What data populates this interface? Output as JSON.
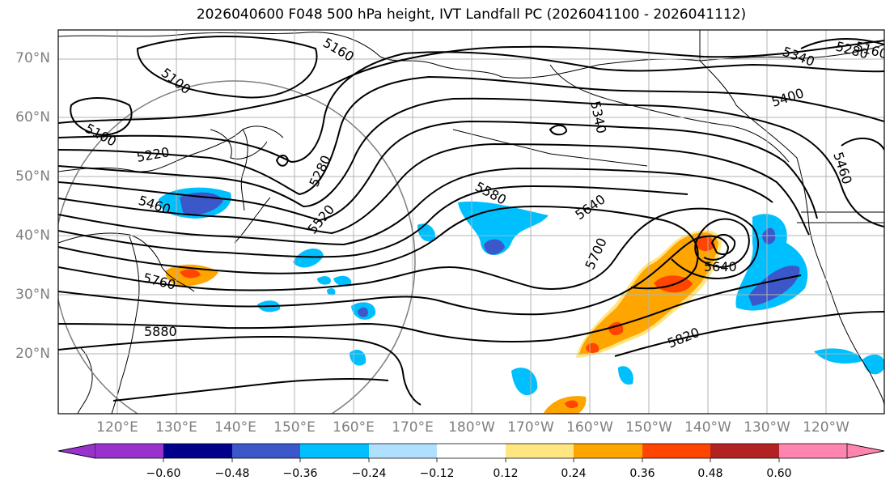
{
  "title": "2026040600 F048 500 hPa height, IVT Landfall PC (2026041100 - 2026041112)",
  "map": {
    "projection": "PlateCarree",
    "lat_labels": [
      "70°N",
      "60°N",
      "50°N",
      "40°N",
      "30°N",
      "20°N"
    ],
    "lon_labels": [
      "120°E",
      "130°E",
      "140°E",
      "150°E",
      "160°E",
      "170°E",
      "180°W",
      "170°W",
      "160°W",
      "150°W",
      "140°W",
      "130°W",
      "120°W"
    ],
    "contour_labels": [
      "5100",
      "5100",
      "5160",
      "5220",
      "5280",
      "5340",
      "5340",
      "5400",
      "5460",
      "5460",
      "5520",
      "5580",
      "5640",
      "5640",
      "5700",
      "5760",
      "5820",
      "5880",
      "5280",
      "5160"
    ],
    "fill_colors": {
      "neg_strong": "#3b57c9",
      "neg_mid": "#00bfff",
      "neg_weak": "#b0e0ff",
      "pos_weak": "#ffe680",
      "pos_mid": "#ffa500",
      "pos_strong": "#ff4500"
    }
  },
  "colorbar": {
    "ticks": [
      "−0.60",
      "−0.48",
      "−0.36",
      "−0.24",
      "−0.12",
      "0.12",
      "0.24",
      "0.36",
      "0.48",
      "0.60"
    ],
    "colors": [
      "#9932cc",
      "#00008b",
      "#3b57c9",
      "#00bfff",
      "#b0e0ff",
      "#ffffff",
      "#ffe680",
      "#ffa500",
      "#ff4500",
      "#b22222",
      "#ff85b0"
    ]
  }
}
